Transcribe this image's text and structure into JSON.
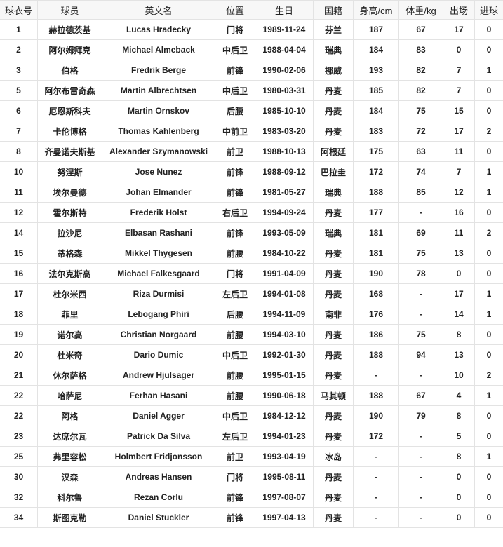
{
  "headers": [
    "球衣号",
    "球员",
    "英文名",
    "位置",
    "生日",
    "国籍",
    "身高/cm",
    "体重/kg",
    "出场",
    "进球"
  ],
  "rows": [
    [
      "1",
      "赫拉德茨基",
      "Lucas Hradecky",
      "门将",
      "1989-11-24",
      "芬兰",
      "187",
      "67",
      "17",
      "0"
    ],
    [
      "2",
      "阿尔姆拜克",
      "Michael Almeback",
      "中后卫",
      "1988-04-04",
      "瑞典",
      "184",
      "83",
      "0",
      "0"
    ],
    [
      "3",
      "伯格",
      "Fredrik Berge",
      "前锋",
      "1990-02-06",
      "挪威",
      "193",
      "82",
      "7",
      "1"
    ],
    [
      "5",
      "阿尔布雷奇森",
      "Martin Albrechtsen",
      "中后卫",
      "1980-03-31",
      "丹麦",
      "185",
      "82",
      "7",
      "0"
    ],
    [
      "6",
      "厄恩斯科夫",
      "Martin Ornskov",
      "后腰",
      "1985-10-10",
      "丹麦",
      "184",
      "75",
      "15",
      "0"
    ],
    [
      "7",
      "卡伦博格",
      "Thomas Kahlenberg",
      "中前卫",
      "1983-03-20",
      "丹麦",
      "183",
      "72",
      "17",
      "2"
    ],
    [
      "8",
      "齐曼诺夫斯基",
      "Alexander Szymanowski",
      "前卫",
      "1988-10-13",
      "阿根廷",
      "175",
      "63",
      "11",
      "0"
    ],
    [
      "10",
      "努涅斯",
      "Jose Nunez",
      "前锋",
      "1988-09-12",
      "巴拉圭",
      "172",
      "74",
      "7",
      "1"
    ],
    [
      "11",
      "埃尔曼德",
      "Johan Elmander",
      "前锋",
      "1981-05-27",
      "瑞典",
      "188",
      "85",
      "12",
      "1"
    ],
    [
      "12",
      "霍尔斯特",
      "Frederik Holst",
      "右后卫",
      "1994-09-24",
      "丹麦",
      "177",
      "-",
      "16",
      "0"
    ],
    [
      "14",
      "拉沙尼",
      "Elbasan Rashani",
      "前锋",
      "1993-05-09",
      "瑞典",
      "181",
      "69",
      "11",
      "2"
    ],
    [
      "15",
      "蒂格森",
      "Mikkel Thygesen",
      "前腰",
      "1984-10-22",
      "丹麦",
      "181",
      "75",
      "13",
      "0"
    ],
    [
      "16",
      "法尔克斯高",
      "Michael Falkesgaard",
      "门将",
      "1991-04-09",
      "丹麦",
      "190",
      "78",
      "0",
      "0"
    ],
    [
      "17",
      "杜尔米西",
      "Riza Durmisi",
      "左后卫",
      "1994-01-08",
      "丹麦",
      "168",
      "-",
      "17",
      "1"
    ],
    [
      "18",
      "菲里",
      "Lebogang Phiri",
      "后腰",
      "1994-11-09",
      "南非",
      "176",
      "-",
      "14",
      "1"
    ],
    [
      "19",
      "诺尔高",
      "Christian Norgaard",
      "前腰",
      "1994-03-10",
      "丹麦",
      "186",
      "75",
      "8",
      "0"
    ],
    [
      "20",
      "杜米奇",
      "Dario Dumic",
      "中后卫",
      "1992-01-30",
      "丹麦",
      "188",
      "94",
      "13",
      "0"
    ],
    [
      "21",
      "休尔萨格",
      "Andrew Hjulsager",
      "前腰",
      "1995-01-15",
      "丹麦",
      "-",
      "-",
      "10",
      "2"
    ],
    [
      "22",
      "哈萨尼",
      "Ferhan Hasani",
      "前腰",
      "1990-06-18",
      "马其顿",
      "188",
      "67",
      "4",
      "1"
    ],
    [
      "22",
      "阿格",
      "Daniel Agger",
      "中后卫",
      "1984-12-12",
      "丹麦",
      "190",
      "79",
      "8",
      "0"
    ],
    [
      "23",
      "达席尔瓦",
      "Patrick Da Silva",
      "左后卫",
      "1994-01-23",
      "丹麦",
      "172",
      "-",
      "5",
      "0"
    ],
    [
      "25",
      "弗里容松",
      "Holmbert Fridjonsson",
      "前卫",
      "1993-04-19",
      "冰岛",
      "-",
      "-",
      "8",
      "1"
    ],
    [
      "30",
      "汉森",
      "Andreas Hansen",
      "门将",
      "1995-08-11",
      "丹麦",
      "-",
      "-",
      "0",
      "0"
    ],
    [
      "32",
      "科尔鲁",
      "Rezan Corlu",
      "前锋",
      "1997-08-07",
      "丹麦",
      "-",
      "-",
      "0",
      "0"
    ],
    [
      "34",
      "斯图克勒",
      "Daniel Stuckler",
      "前锋",
      "1997-04-13",
      "丹麦",
      "-",
      "-",
      "0",
      "0"
    ]
  ]
}
